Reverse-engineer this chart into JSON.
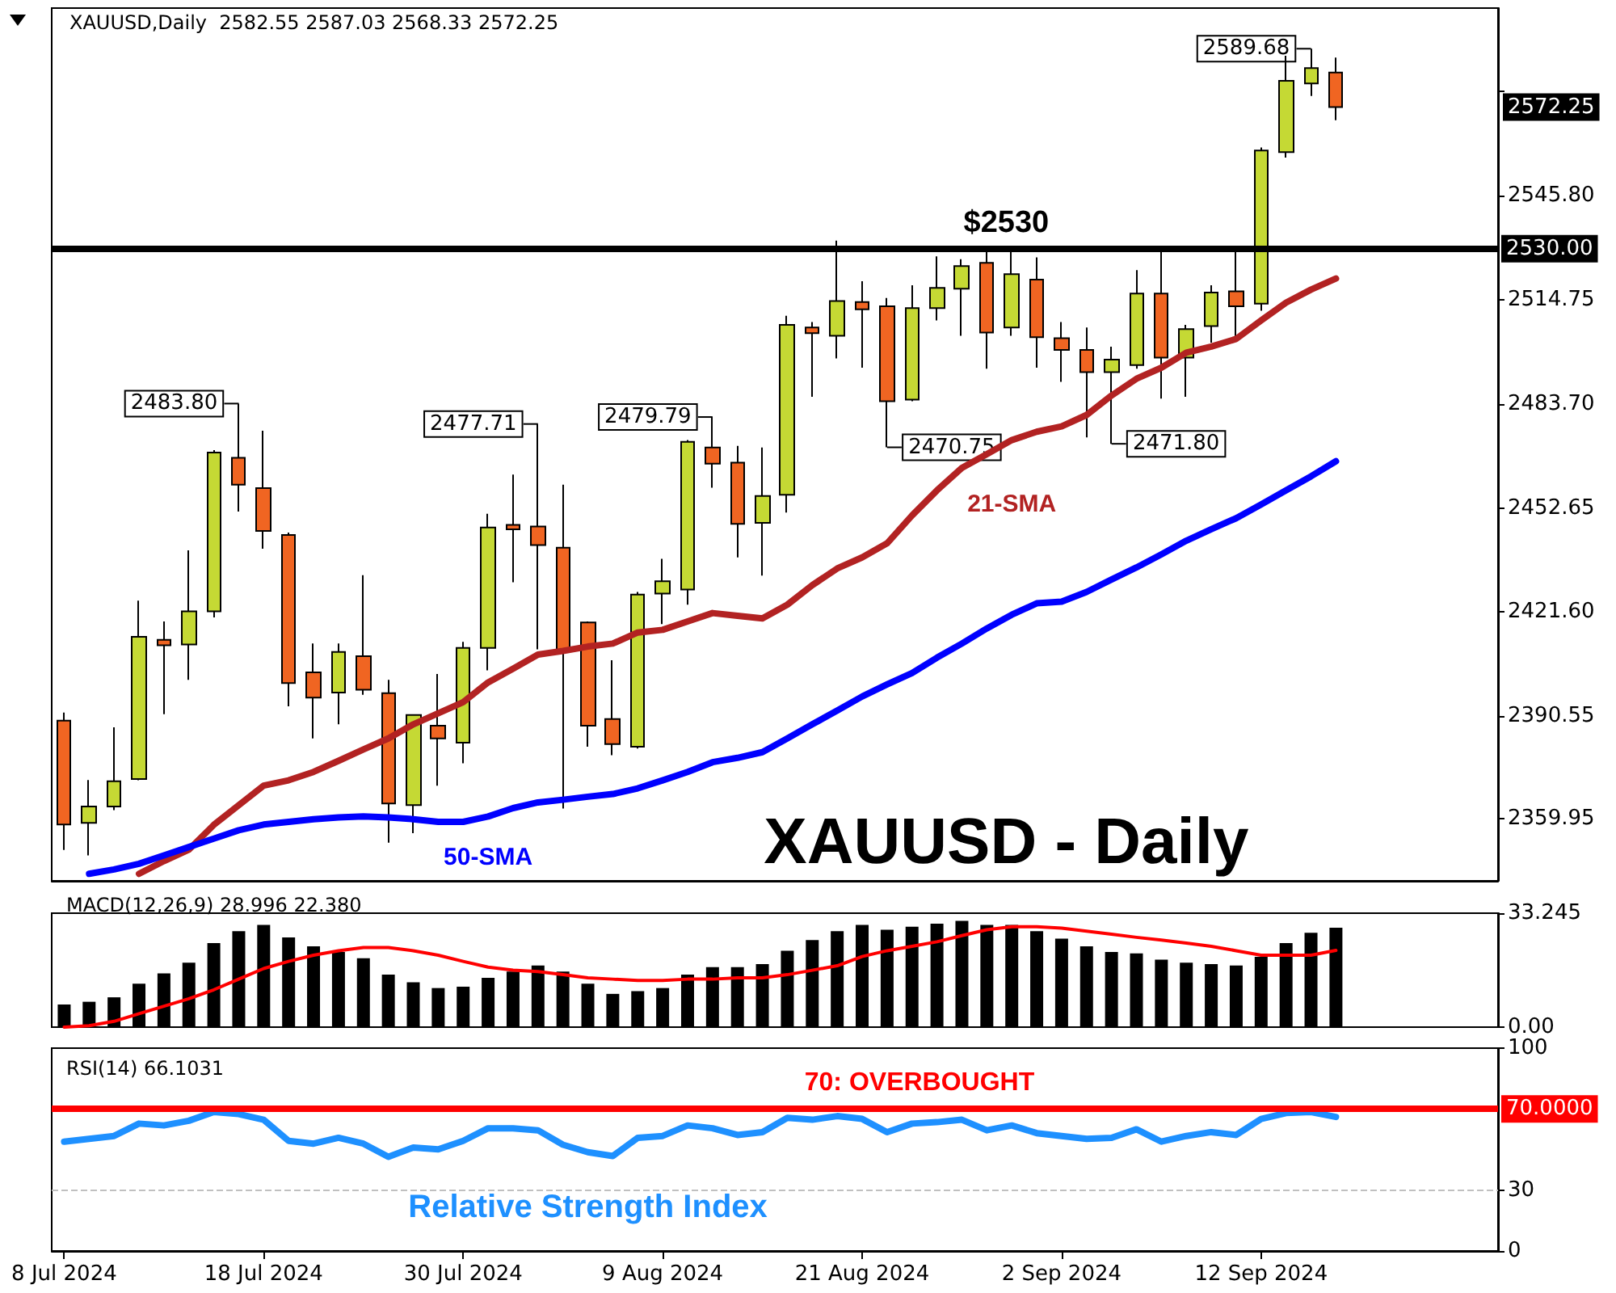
{
  "chart_data": [
    {
      "type": "candlestick",
      "title": "XAUUSD,Daily  2582.55 2587.03 2568.33 2572.25",
      "categories": [
        null,
        null,
        null,
        null,
        null,
        null,
        null,
        null,
        null,
        null,
        null,
        null,
        null,
        null,
        null,
        null,
        null,
        null,
        null,
        null,
        null,
        null,
        null,
        null,
        null,
        null,
        null,
        null,
        null,
        null,
        null,
        null,
        null,
        null,
        null,
        null,
        null,
        null,
        null,
        null,
        null,
        null,
        null,
        null,
        null,
        null,
        null,
        null,
        null,
        null,
        null,
        null,
        null,
        null,
        null,
        null,
        null,
        null
      ],
      "ohlc": [
        [
          2389.2,
          2391.6,
          2350.6,
          2358.2
        ],
        [
          2358.7,
          2371.5,
          2349.0,
          2363.6
        ],
        [
          2363.6,
          2387.2,
          2362.5,
          2371.1
        ],
        [
          2371.8,
          2425.0,
          2371.4,
          2414.2
        ],
        [
          2413.3,
          2418.8,
          2391.1,
          2411.7
        ],
        [
          2411.9,
          2440.0,
          2401.4,
          2421.8
        ],
        [
          2421.8,
          2469.9,
          2420.0,
          2469.2
        ],
        [
          2467.6,
          2483.8,
          2451.6,
          2459.6
        ],
        [
          2458.6,
          2475.7,
          2440.5,
          2445.8
        ],
        [
          2444.6,
          2445.3,
          2393.5,
          2400.4
        ],
        [
          2403.6,
          2412.2,
          2383.9,
          2396.1
        ],
        [
          2397.6,
          2412.2,
          2388.1,
          2409.7
        ],
        [
          2408.4,
          2432.6,
          2396.9,
          2398.4
        ],
        [
          2397.4,
          2401.4,
          2352.8,
          2364.5
        ],
        [
          2364.0,
          2390.9,
          2355.6,
          2390.9
        ],
        [
          2387.7,
          2403.1,
          2369.8,
          2383.9
        ],
        [
          2382.6,
          2412.7,
          2376.5,
          2410.9
        ],
        [
          2410.9,
          2450.9,
          2404.2,
          2446.8
        ],
        [
          2447.6,
          2462.6,
          2430.5,
          2446.3
        ],
        [
          2447.1,
          2477.71,
          2410.5,
          2441.6
        ],
        [
          2440.8,
          2459.6,
          2363.0,
          2410.0
        ],
        [
          2418.5,
          2418.8,
          2381.4,
          2387.7
        ],
        [
          2389.7,
          2407.2,
          2378.9,
          2382.2
        ],
        [
          2381.4,
          2427.6,
          2380.9,
          2426.8
        ],
        [
          2427.1,
          2437.5,
          2418.0,
          2430.8
        ],
        [
          2428.3,
          2472.9,
          2423.8,
          2472.4
        ],
        [
          2470.7,
          2479.79,
          2458.7,
          2465.9
        ],
        [
          2466.2,
          2471.2,
          2437.9,
          2447.9
        ],
        [
          2448.2,
          2470.7,
          2432.5,
          2456.2
        ],
        [
          2456.6,
          2510.0,
          2451.3,
          2507.3
        ],
        [
          2506.5,
          2508.1,
          2485.8,
          2504.8
        ],
        [
          2504.0,
          2532.4,
          2497.3,
          2514.4
        ],
        [
          2514.1,
          2520.3,
          2494.5,
          2511.9
        ],
        [
          2512.8,
          2515.3,
          2470.75,
          2484.5
        ],
        [
          2485.0,
          2519.1,
          2484.5,
          2512.3
        ],
        [
          2512.3,
          2527.7,
          2508.6,
          2518.3
        ],
        [
          2518.1,
          2526.9,
          2504.0,
          2524.8
        ],
        [
          2525.8,
          2529.4,
          2494.2,
          2505.0
        ],
        [
          2506.5,
          2529.1,
          2504.0,
          2522.4
        ],
        [
          2520.8,
          2527.4,
          2494.5,
          2503.6
        ],
        [
          2503.3,
          2508.1,
          2490.3,
          2499.8
        ],
        [
          2499.8,
          2506.5,
          2473.7,
          2493.2
        ],
        [
          2493.2,
          2500.8,
          2471.8,
          2496.9
        ],
        [
          2495.3,
          2523.6,
          2494.2,
          2516.6
        ],
        [
          2516.6,
          2529.1,
          2485.3,
          2497.5
        ],
        [
          2497.5,
          2507.3,
          2485.8,
          2506.0
        ],
        [
          2506.9,
          2519.1,
          2502.0,
          2516.9
        ],
        [
          2517.3,
          2529.1,
          2503.6,
          2512.8
        ],
        [
          2513.6,
          2560.2,
          2511.5,
          2559.3
        ],
        [
          2558.8,
          2587.6,
          2557.2,
          2580.1
        ],
        [
          2579.3,
          2589.68,
          2575.6,
          2583.9
        ],
        [
          2582.55,
          2587.03,
          2568.33,
          2572.25
        ],
        null,
        null,
        null,
        null,
        null,
        null
      ],
      "colors": [
        "#f06522",
        "#c5d934",
        "#c5d934",
        "#c5d934",
        "#f06522",
        "#c5d934",
        "#c5d934",
        "#f06522",
        "#f06522",
        "#f06522",
        "#f06522",
        "#c5d934",
        "#f06522",
        "#f06522",
        "#c5d934",
        "#f06522",
        "#c5d934",
        "#c5d934",
        "#f06522",
        "#f06522",
        "#f06522",
        "#f06522",
        "#f06522",
        "#c5d934",
        "#c5d934",
        "#c5d934",
        "#f06522",
        "#f06522",
        "#c5d934",
        "#c5d934",
        "#f06522",
        "#c5d934",
        "#f06522",
        "#f06522",
        "#c5d934",
        "#c5d934",
        "#c5d934",
        "#f06522",
        "#c5d934",
        "#f06522",
        "#f06522",
        "#f06522",
        "#c5d934",
        "#c5d934",
        "#f06522",
        "#c5d934",
        "#c5d934",
        "#f06522",
        "#c5d934",
        "#c5d934",
        "#c5d934",
        "#f06522",
        null,
        null,
        null,
        null,
        null,
        null
      ],
      "series": [
        {
          "name": "21-SMA",
          "type": "line",
          "color": "#b22222",
          "values": [
            null,
            null,
            null,
            2343.5,
            2347.3,
            2350.7,
            2358.1,
            2364.0,
            2369.8,
            2371.4,
            2373.9,
            2377.2,
            2380.6,
            2383.9,
            2388.1,
            2391.4,
            2394.7,
            2400.6,
            2404.7,
            2408.9,
            2410.0,
            2411.3,
            2412.2,
            2415.5,
            2416.3,
            2418.8,
            2421.3,
            2420.5,
            2419.7,
            2423.8,
            2429.6,
            2434.6,
            2437.9,
            2442.1,
            2450.4,
            2457.9,
            2464.6,
            2468.7,
            2472.9,
            2475.4,
            2477.0,
            2480.4,
            2486.2,
            2491.2,
            2494.5,
            2499.0,
            2500.8,
            2503.1,
            2508.6,
            2513.9,
            2517.8,
            2521.1,
            null,
            null,
            null,
            null,
            null,
            null
          ]
        },
        {
          "name": "50-SMA",
          "type": "line",
          "color": "#0000ff",
          "values": [
            null,
            2343.5,
            2344.8,
            2346.5,
            2349.0,
            2351.5,
            2354.0,
            2356.5,
            2358.2,
            2359.0,
            2359.8,
            2360.3,
            2360.6,
            2360.3,
            2359.8,
            2359.0,
            2359.0,
            2360.6,
            2363.1,
            2364.8,
            2365.6,
            2366.5,
            2367.3,
            2369.0,
            2371.4,
            2373.9,
            2376.8,
            2378.1,
            2379.8,
            2383.9,
            2388.1,
            2392.2,
            2396.4,
            2400.0,
            2403.4,
            2408.0,
            2412.2,
            2416.7,
            2420.8,
            2424.2,
            2424.7,
            2427.6,
            2431.3,
            2434.9,
            2438.8,
            2442.9,
            2446.3,
            2449.6,
            2453.7,
            2457.9,
            2462.1,
            2466.6,
            null,
            null,
            null,
            null,
            null,
            null
          ]
        }
      ],
      "ylim": [
        2341.4,
        2601.8
      ],
      "yticks": [
        2359.95,
        2390.55,
        {
          "value": 2421.6,
          "label": "2421.60"
        },
        2452.65,
        {
          "value": 2483.7,
          "label": "2483.70"
        },
        2514.75,
        {
          "value": 2545.8,
          "label": "2545.80"
        },
        {
          "value": 2576.85,
          "label": null
        }
      ],
      "ref_lines": [
        {
          "axis": "y",
          "value": 2530,
          "label": "2530.00",
          "color": "#000000"
        }
      ],
      "annotations": [
        "XAUUSD - Daily",
        {
          "text": "$2530",
          "y": 2530
        },
        "2483.80",
        "2477.71",
        "2479.79",
        "2470.75",
        "2471.80",
        "2589.68",
        "2572.25"
      ],
      "marker": "none",
      "tick_labels": "y"
    },
    {
      "type": "bar",
      "title": "MACD(12,26,9) 28.996 22.380",
      "categories": [
        null,
        null,
        null,
        null,
        null,
        null,
        null,
        null,
        null,
        null,
        null,
        null,
        null,
        null,
        null,
        null,
        null,
        null,
        null,
        null,
        null,
        null,
        null,
        null,
        null,
        null,
        null,
        null,
        null,
        null,
        null,
        null,
        null,
        null,
        null,
        null,
        null,
        null,
        null,
        null,
        null,
        null,
        null,
        null,
        null,
        null,
        null,
        null,
        null,
        null,
        null,
        null,
        null,
        null,
        null,
        null,
        null,
        null
      ],
      "series": [
        {
          "type": "bar",
          "color": "#000000",
          "values": [
            6.6,
            7.4,
            8.7,
            12.7,
            15.7,
            18.8,
            24.5,
            28.0,
            29.8,
            26.2,
            23.6,
            21.9,
            20.1,
            15.3,
            13.1,
            11.4,
            11.8,
            14.4,
            16.2,
            18.0,
            16.2,
            12.7,
            9.7,
            10.5,
            11.4,
            15.3,
            17.5,
            17.5,
            18.4,
            22.3,
            25.4,
            28.0,
            29.8,
            28.4,
            29.3,
            30.2,
            31.0,
            29.8,
            29.8,
            28.0,
            25.8,
            23.6,
            21.9,
            21.5,
            19.7,
            18.8,
            18.4,
            18.0,
            20.5,
            24.5,
            27.5,
            28.996,
            null,
            null,
            null,
            null,
            null,
            null
          ]
        },
        {
          "type": "line",
          "color": "#ff0000",
          "values": [
            0.0,
            0.4,
            1.7,
            3.9,
            6.1,
            8.3,
            10.9,
            14.0,
            17.1,
            19.2,
            21.0,
            22.3,
            23.2,
            23.2,
            22.3,
            21.0,
            19.2,
            17.5,
            16.6,
            16.2,
            15.3,
            14.4,
            14.0,
            13.6,
            13.6,
            14.0,
            14.0,
            14.4,
            14.4,
            15.3,
            16.6,
            17.9,
            20.6,
            22.3,
            23.6,
            24.9,
            26.7,
            28.4,
            29.3,
            29.3,
            28.9,
            28.0,
            27.1,
            26.2,
            25.4,
            24.5,
            23.6,
            22.3,
            21.0,
            21.0,
            21.0,
            22.38,
            null,
            null,
            null,
            null,
            null,
            null
          ]
        }
      ],
      "ylim": [
        0,
        33.245
      ],
      "yticks": [
        {
          "value": 0,
          "label": "0.00"
        },
        33.245
      ],
      "marker": "none",
      "tick_labels": "y"
    },
    {
      "type": "line",
      "title": "RSI(14) 66.1031",
      "categories": [
        "8 Jul 2024",
        null,
        null,
        null,
        null,
        null,
        null,
        null,
        "18 Jul 2024",
        null,
        null,
        null,
        null,
        null,
        null,
        null,
        "30 Jul 2024",
        null,
        null,
        null,
        null,
        null,
        null,
        null,
        "9 Aug 2024",
        null,
        null,
        null,
        null,
        null,
        null,
        null,
        "21 Aug 2024",
        null,
        null,
        null,
        null,
        null,
        null,
        null,
        "2 Sep 2024",
        null,
        null,
        null,
        null,
        null,
        null,
        null,
        "12 Sep 2024",
        null,
        null,
        null,
        null,
        null,
        null,
        null,
        null,
        null
      ],
      "series": [
        {
          "name": "Relative Strength Index",
          "color": "#1e90ff",
          "values": [
            53.9,
            55.3,
            56.7,
            62.8,
            61.9,
            64.2,
            68.5,
            67.5,
            64.7,
            54.3,
            52.9,
            55.8,
            52.9,
            46.4,
            51.0,
            50.1,
            54.3,
            60.5,
            60.5,
            59.5,
            52.4,
            48.7,
            46.8,
            55.8,
            56.7,
            61.9,
            60.5,
            57.2,
            58.6,
            65.6,
            64.7,
            66.5,
            65.1,
            58.6,
            62.8,
            63.5,
            64.7,
            59.5,
            61.9,
            58.1,
            56.7,
            55.3,
            55.8,
            60.0,
            53.9,
            56.7,
            58.6,
            57.2,
            65.1,
            68.0,
            68.5,
            66.1031,
            null,
            null,
            null,
            null,
            null,
            null
          ]
        }
      ],
      "ylim": [
        0,
        100
      ],
      "yticks": [
        0,
        30,
        100
      ],
      "ref_lines": [
        {
          "axis": "y",
          "value": 70,
          "label": "70.0000",
          "color": "#ff0000"
        },
        {
          "axis": "y",
          "value": 30,
          "color": "#c0c0c0",
          "line_style": "dashed"
        }
      ],
      "annotations": [
        {
          "text": "70: OVERBOUGHT",
          "y": 70
        }
      ],
      "marker": "none"
    }
  ]
}
